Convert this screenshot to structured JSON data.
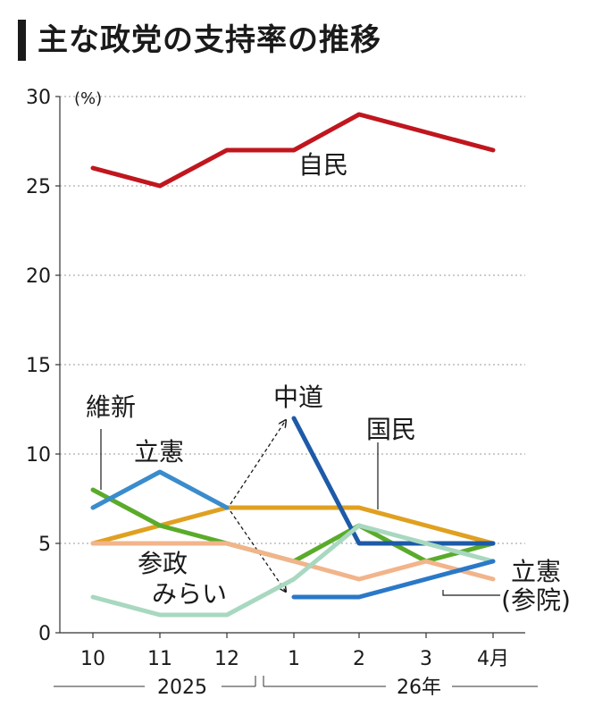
{
  "title": "主な政党の支持率の推移",
  "chart_data": {
    "type": "line",
    "unit_label": "(%)",
    "ylim": [
      0,
      30
    ],
    "yticks": [
      0,
      5,
      10,
      15,
      20,
      25,
      30
    ],
    "grid": true,
    "categories": [
      "10",
      "11",
      "12",
      "1",
      "2",
      "3",
      "4月"
    ],
    "year_labels": [
      "2025",
      "26年"
    ],
    "series": [
      {
        "name": "自民",
        "color": "#c0161e",
        "values": [
          26,
          25,
          27,
          27,
          29,
          28,
          27
        ]
      },
      {
        "name": "国民",
        "color": "#e0a020",
        "values": [
          5,
          6,
          7,
          7,
          7,
          6,
          5
        ]
      },
      {
        "name": "維新",
        "color": "#5aab2a",
        "values": [
          8,
          6,
          5,
          4,
          6,
          4,
          5
        ]
      },
      {
        "name": "立憲",
        "color": "#3a8ccc",
        "values": [
          7,
          9,
          7,
          null,
          null,
          null,
          null
        ]
      },
      {
        "name": "中道",
        "color": "#1d5aa8",
        "values": [
          null,
          null,
          null,
          12,
          5,
          5,
          5
        ]
      },
      {
        "name": "参政",
        "color": "#f2b48a",
        "values": [
          5,
          5,
          5,
          4,
          3,
          4,
          3
        ]
      },
      {
        "name": "みらい",
        "color": "#a8d8c0",
        "values": [
          2,
          1,
          1,
          3,
          6,
          5,
          4
        ]
      },
      {
        "name": "立憲(参院)",
        "color": "#2a78c8",
        "values": [
          null,
          null,
          null,
          2,
          2,
          3,
          4
        ]
      }
    ],
    "labels": {
      "jimin": "自民",
      "kokumin": "国民",
      "ishin": "維新",
      "rikken": "立憲",
      "chudo": "中道",
      "sansei": "参政",
      "mirai": "みらい",
      "rikken_sanin_1": "立憲",
      "rikken_sanin_2": "(参院)"
    }
  }
}
